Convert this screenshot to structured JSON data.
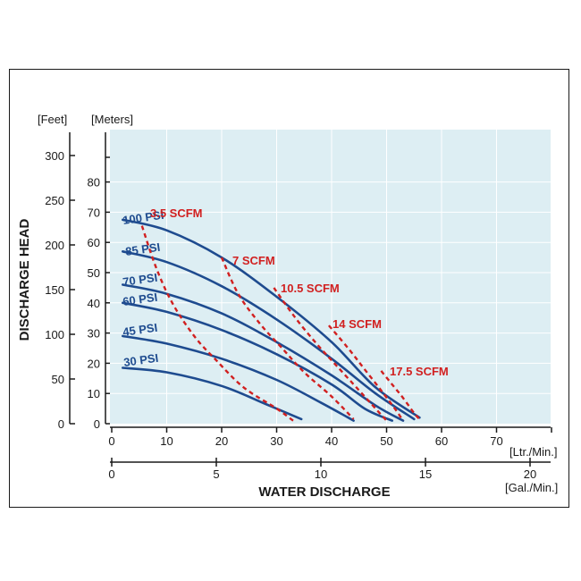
{
  "chart_data": {
    "type": "line",
    "colors": {
      "plot_bg": "#ddeef3",
      "grid": "#ffffff",
      "psi_curve": "#1e4b8f",
      "scfm_curve": "#d12020",
      "axis": "#1a1a1a"
    },
    "axes": {
      "y_feet": {
        "label": "[Feet]",
        "ticks": [
          "0",
          "50",
          "100",
          "150",
          "200",
          "250",
          "300"
        ],
        "range": [
          0,
          325
        ]
      },
      "y_meters": {
        "label": "[Meters]",
        "ticks": [
          "0",
          "10",
          "20",
          "30",
          "40",
          "50",
          "60",
          "70",
          "80"
        ],
        "range": [
          0,
          100
        ]
      },
      "y_title": "DISCHARGE HEAD",
      "x_lpm": {
        "label": "[Ltr./Min.]",
        "ticks": [
          "0",
          "10",
          "20",
          "30",
          "40",
          "50",
          "60",
          "70"
        ],
        "range": [
          0,
          80
        ]
      },
      "x_gpm": {
        "label": "[Gal./Min.]",
        "ticks": [
          "0",
          "5",
          "10",
          "15",
          "20"
        ],
        "range": [
          0,
          21
        ]
      },
      "x_title": "WATER DISCHARGE"
    },
    "psi_series": [
      {
        "name": "100 PSI",
        "points": [
          [
            2,
            67.5
          ],
          [
            10,
            64
          ],
          [
            20,
            55
          ],
          [
            30,
            42
          ],
          [
            40,
            27
          ],
          [
            48,
            12
          ],
          [
            56,
            2
          ]
        ]
      },
      {
        "name": "85 PSI",
        "points": [
          [
            2,
            57
          ],
          [
            10,
            53.5
          ],
          [
            20,
            45.5
          ],
          [
            30,
            34.5
          ],
          [
            40,
            21.5
          ],
          [
            48,
            10
          ],
          [
            55,
            1.5
          ]
        ]
      },
      {
        "name": "70 PSI",
        "points": [
          [
            2,
            46
          ],
          [
            10,
            43
          ],
          [
            20,
            36.5
          ],
          [
            30,
            27
          ],
          [
            40,
            16
          ],
          [
            48,
            6
          ],
          [
            53,
            1
          ]
        ]
      },
      {
        "name": "60 PSI",
        "points": [
          [
            2,
            40
          ],
          [
            10,
            37
          ],
          [
            20,
            31
          ],
          [
            30,
            23
          ],
          [
            40,
            13
          ],
          [
            46,
            5
          ],
          [
            51,
            1
          ]
        ]
      },
      {
        "name": "45 PSI",
        "points": [
          [
            2,
            29
          ],
          [
            10,
            26.5
          ],
          [
            20,
            21.5
          ],
          [
            30,
            14.5
          ],
          [
            38,
            7
          ],
          [
            44,
            1
          ]
        ]
      },
      {
        "name": "30 PSI",
        "points": [
          [
            2,
            18.5
          ],
          [
            10,
            17
          ],
          [
            20,
            12.5
          ],
          [
            28,
            6.5
          ],
          [
            34.5,
            1.5
          ]
        ]
      }
    ],
    "scfm_series": [
      {
        "name": "3.5 SCFM",
        "points": [
          [
            5.5,
            65.5
          ],
          [
            8,
            52
          ],
          [
            11,
            40
          ],
          [
            15,
            29
          ],
          [
            19,
            21
          ],
          [
            24,
            12
          ],
          [
            30,
            5
          ],
          [
            33,
            1
          ]
        ]
      },
      {
        "name": "7 SCFM",
        "points": [
          [
            20,
            55
          ],
          [
            23,
            43
          ],
          [
            27,
            33
          ],
          [
            31,
            25
          ],
          [
            35,
            17
          ],
          [
            40,
            9
          ],
          [
            44,
            1.5
          ]
        ]
      },
      {
        "name": "10.5 SCFM",
        "points": [
          [
            29.5,
            45
          ],
          [
            33,
            36
          ],
          [
            37,
            27
          ],
          [
            41,
            19
          ],
          [
            45,
            11
          ],
          [
            48,
            5
          ],
          [
            50,
            1
          ]
        ]
      },
      {
        "name": "14 SCFM",
        "points": [
          [
            39.5,
            32.5
          ],
          [
            43,
            25
          ],
          [
            46,
            18
          ],
          [
            49,
            11
          ],
          [
            51.5,
            5
          ],
          [
            53,
            1
          ]
        ]
      },
      {
        "name": "17.5 SCFM",
        "points": [
          [
            49,
            17.5
          ],
          [
            51,
            13
          ],
          [
            53,
            8.5
          ],
          [
            55,
            3.5
          ],
          [
            56,
            1.5
          ]
        ]
      }
    ]
  }
}
